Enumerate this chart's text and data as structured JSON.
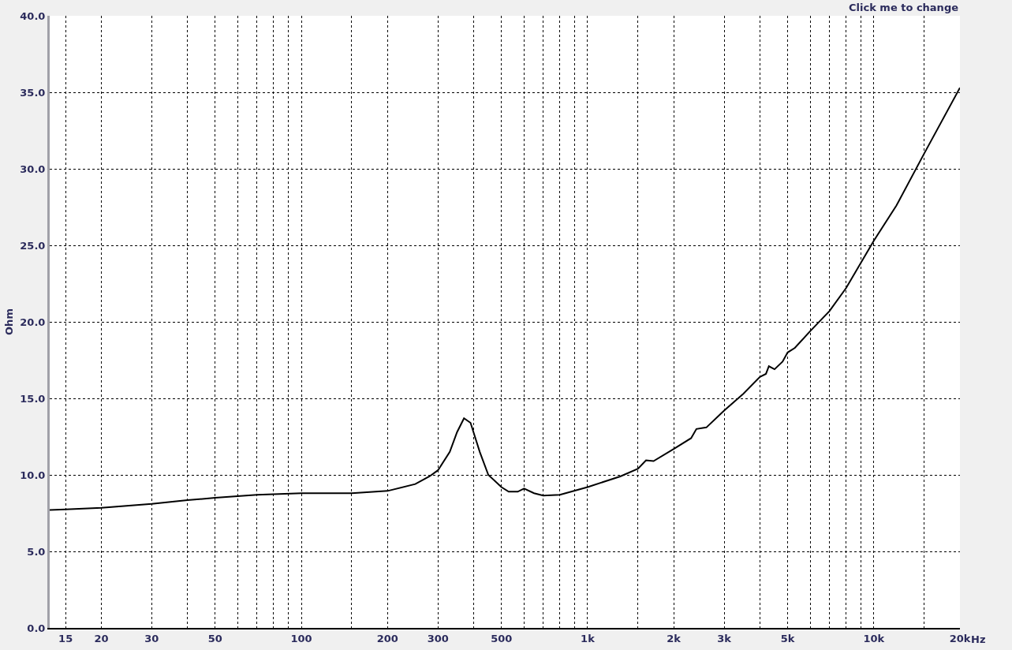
{
  "chart_data": {
    "type": "line",
    "ylabel": "Ohm",
    "annotations": [
      "Click me to change"
    ],
    "log": "x",
    "grid": true,
    "marker": "none",
    "line_style": "solid",
    "xlim": [
      13.2,
      20000
    ],
    "xticks": [
      {
        "value": 15,
        "label": "15"
      },
      {
        "value": 20,
        "label": "20"
      },
      {
        "value": 30,
        "label": "30"
      },
      {
        "value": 40,
        "label": null
      },
      {
        "value": 50,
        "label": "50"
      },
      {
        "value": 60,
        "label": null
      },
      {
        "value": 70,
        "label": null
      },
      {
        "value": 80,
        "label": null
      },
      {
        "value": 90,
        "label": null
      },
      {
        "value": 100,
        "label": "100"
      },
      {
        "value": 150,
        "label": null
      },
      {
        "value": 200,
        "label": "200"
      },
      {
        "value": 300,
        "label": "300"
      },
      {
        "value": 400,
        "label": null
      },
      {
        "value": 500,
        "label": "500"
      },
      {
        "value": 600,
        "label": null
      },
      {
        "value": 700,
        "label": null
      },
      {
        "value": 800,
        "label": null
      },
      {
        "value": 900,
        "label": null
      },
      {
        "value": 1000,
        "label": "1k"
      },
      {
        "value": 1500,
        "label": null
      },
      {
        "value": 2000,
        "label": "2k"
      },
      {
        "value": 3000,
        "label": "3k"
      },
      {
        "value": 4000,
        "label": null
      },
      {
        "value": 5000,
        "label": "5k"
      },
      {
        "value": 6000,
        "label": null
      },
      {
        "value": 7000,
        "label": null
      },
      {
        "value": 8000,
        "label": null
      },
      {
        "value": 9000,
        "label": null
      },
      {
        "value": 10000,
        "label": "10k"
      },
      {
        "value": 15000,
        "label": null
      },
      {
        "value": 20000,
        "label": "20k"
      }
    ],
    "xlabel": "Hz",
    "ylim": [
      0,
      40
    ],
    "yticks": [
      {
        "value": 0,
        "label": "0.0"
      },
      {
        "value": 5,
        "label": "5.0"
      },
      {
        "value": 10,
        "label": "10.0"
      },
      {
        "value": 15,
        "label": "15.0"
      },
      {
        "value": 20,
        "label": "20.0"
      },
      {
        "value": 25,
        "label": "25.0"
      },
      {
        "value": 30,
        "label": "30.0"
      },
      {
        "value": 35,
        "label": "35.0"
      },
      {
        "value": 40,
        "label": "40.0"
      }
    ],
    "series": [
      {
        "color": "#000000",
        "x": [
          13.2,
          15,
          20,
          30,
          40,
          50,
          70,
          100,
          150,
          200,
          250,
          280,
          300,
          330,
          350,
          370,
          390,
          420,
          450,
          500,
          530,
          570,
          600,
          650,
          700,
          800,
          1000,
          1300,
          1500,
          1600,
          1700,
          2000,
          2300,
          2400,
          2600,
          3000,
          3500,
          4000,
          4200,
          4300,
          4500,
          4800,
          5000,
          5300,
          6000,
          7000,
          8000,
          10000,
          12000,
          15000,
          20000
        ],
        "values": [
          7.7,
          7.75,
          7.85,
          8.1,
          8.35,
          8.5,
          8.7,
          8.8,
          8.8,
          8.95,
          9.4,
          9.9,
          10.3,
          11.5,
          12.8,
          13.7,
          13.4,
          11.5,
          10.0,
          9.2,
          8.9,
          8.9,
          9.1,
          8.8,
          8.65,
          8.7,
          9.2,
          9.9,
          10.4,
          10.95,
          10.9,
          11.7,
          12.4,
          13.0,
          13.1,
          14.2,
          15.3,
          16.4,
          16.6,
          17.1,
          16.9,
          17.4,
          18.0,
          18.3,
          19.4,
          20.7,
          22.2,
          25.3,
          27.6,
          31.0,
          35.3
        ]
      }
    ]
  }
}
